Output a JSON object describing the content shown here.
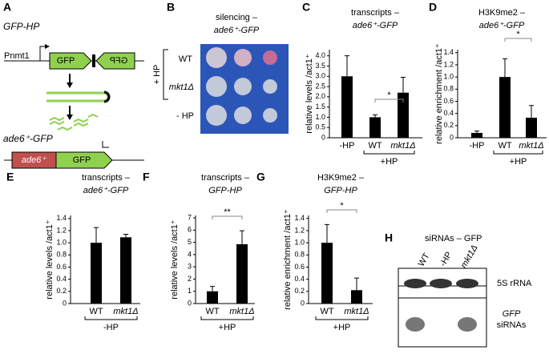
{
  "panel_letters": [
    "A",
    "B",
    "C",
    "D",
    "E",
    "F",
    "G",
    "H"
  ],
  "panel_a": {
    "title": "GFP-HP",
    "promoter": "Pnmt1",
    "gene_left": "GFP",
    "gene_right": "GFP",
    "reporter": "ade6⁺-GFP",
    "reporter_gene": "ade6⁺",
    "reporter_gfp": "GFP"
  },
  "panel_b": {
    "title": "silencing –",
    "subtitle": "ade6⁺-GFP",
    "rows": [
      "WT",
      "mkt1Δ",
      "- HP"
    ],
    "group": "+ HP"
  },
  "panel_h": {
    "title": "siRNAs – GFP",
    "lanes": [
      "WT",
      "-HP",
      "mkt1Δ"
    ],
    "band_top": "5S rRNA",
    "band_bottom_1": "GFP",
    "band_bottom_2": "siRNAs"
  },
  "chart_data": [
    {
      "type": "bar",
      "title": "transcripts –",
      "subtitle": "ade6⁺-GFP",
      "y_label": "relative levels /act1⁺",
      "categories": [
        "-HP",
        "WT",
        "mkt1Δ"
      ],
      "group_label": "+HP",
      "annotation": "*",
      "series": [
        {
          "color": "#000000",
          "values": [
            3.0,
            1.0,
            2.2
          ],
          "errors": [
            1.0,
            0.12,
            0.75
          ]
        }
      ],
      "ylim": [
        0,
        4.3
      ],
      "yticks": [
        0,
        {
          "value": 0.5,
          "label": "0.5"
        },
        {
          "value": 1,
          "label": "1.0"
        },
        {
          "value": 1.5,
          "label": "1.5"
        },
        {
          "value": 2,
          "label": "2.0"
        },
        {
          "value": 2.5,
          "label": "2.5"
        },
        {
          "value": 3,
          "label": "3.0"
        },
        {
          "value": 3.5,
          "label": "3.5"
        },
        {
          "value": 4,
          "label": "4.0"
        }
      ]
    },
    {
      "type": "bar",
      "title": "H3K9me2 –",
      "subtitle": "ade6⁺-GFP",
      "y_label": "relative enrichment /act1⁺",
      "categories": [
        "-HP",
        "WT",
        "mkt1Δ"
      ],
      "group_label": "+HP",
      "annotation": "*",
      "series": [
        {
          "color": "#000000",
          "values": [
            0.08,
            1.0,
            0.33
          ],
          "errors": [
            0.03,
            0.3,
            0.2
          ]
        }
      ],
      "ylim": [
        0,
        1.45
      ],
      "yticks": [
        0,
        {
          "value": 0.2,
          "label": "0.2"
        },
        {
          "value": 0.4,
          "label": "0.4"
        },
        {
          "value": 0.6,
          "label": "0.6"
        },
        {
          "value": 0.8,
          "label": "0.8"
        },
        {
          "value": 1,
          "label": "1.0"
        },
        {
          "value": 1.2,
          "label": "1.2"
        },
        {
          "value": 1.4,
          "label": "1.4"
        }
      ]
    },
    {
      "type": "bar",
      "title": "transcripts –",
      "subtitle": "ade6⁺-GFP",
      "y_label": "relative levels /act1⁺",
      "categories": [
        "WT",
        "mkt1Δ"
      ],
      "group_label": "-HP",
      "series": [
        {
          "color": "#000000",
          "values": [
            1.0,
            1.09
          ],
          "errors": [
            0.25,
            0.05
          ]
        }
      ],
      "ylim": [
        0,
        1.45
      ],
      "yticks": [
        0,
        {
          "value": 0.2,
          "label": "0.2"
        },
        {
          "value": 0.4,
          "label": "0.4"
        },
        {
          "value": 0.6,
          "label": "0.6"
        },
        {
          "value": 0.8,
          "label": "0.8"
        },
        {
          "value": 1,
          "label": "1.0"
        },
        {
          "value": 1.2,
          "label": "1.2"
        },
        {
          "value": 1.4,
          "label": "1.4"
        }
      ]
    },
    {
      "type": "bar",
      "title": "transcripts –",
      "subtitle": "GFP-HP",
      "y_label": "relative levels /act1⁺",
      "categories": [
        "WT",
        "mkt1Δ"
      ],
      "group_label": "+HP",
      "annotation": "**",
      "series": [
        {
          "color": "#000000",
          "values": [
            1.0,
            4.85
          ],
          "errors": [
            0.4,
            1.1
          ]
        }
      ],
      "ylim": [
        0,
        7.2
      ],
      "yticks": [
        0,
        1,
        2,
        3,
        4,
        5,
        6,
        7
      ]
    },
    {
      "type": "bar",
      "title": "H3K9me2 –",
      "subtitle": "GFP-HP",
      "y_label": "relative enrichment /act1⁺",
      "categories": [
        "WT",
        "mkt1Δ"
      ],
      "group_label": "+HP",
      "annotation": "*",
      "series": [
        {
          "color": "#000000",
          "values": [
            1.0,
            0.22
          ],
          "errors": [
            0.3,
            0.2
          ]
        }
      ],
      "ylim": [
        0,
        1.45
      ],
      "yticks": [
        0,
        {
          "value": 0.2,
          "label": "0.2"
        },
        {
          "value": 0.4,
          "label": "0.4"
        },
        {
          "value": 0.6,
          "label": "0.6"
        },
        {
          "value": 0.8,
          "label": "0.8"
        },
        {
          "value": 1,
          "label": "1.0"
        },
        {
          "value": 1.2,
          "label": "1.2"
        },
        {
          "value": 1.4,
          "label": "1.4"
        }
      ]
    }
  ]
}
